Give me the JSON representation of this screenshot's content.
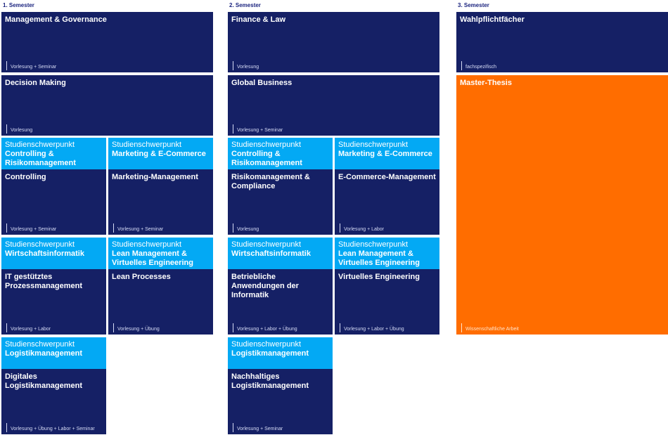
{
  "semesters": [
    {
      "label": "1. Semester"
    },
    {
      "label": "2. Semester"
    },
    {
      "label": "3. Semester"
    }
  ],
  "spec_label": "Studienschwerpunkt",
  "s1": {
    "mg": {
      "title": "Management & Governance",
      "type": "Vorlesung + Seminar"
    },
    "dm": {
      "title": "Decision Making",
      "type": "Vorlesung"
    },
    "controlling": {
      "spec": "Controlling & Risikomanagement",
      "title": "Controlling",
      "type": "Vorlesung + Seminar"
    },
    "marketing": {
      "spec": "Marketing & E-Commerce",
      "title": "Marketing-Management",
      "type": "Vorlesung + Seminar"
    },
    "it": {
      "spec": "Wirtschaftsinformatik",
      "title": "IT gestütztes Prozessmanagement",
      "type": "Vorlesung + Labor"
    },
    "lean": {
      "spec": "Lean Management & Virtuelles Engineering",
      "title": "Lean Processes",
      "type": "Vorlesung + Übung"
    },
    "logistik": {
      "spec": "Logistikmanagement",
      "title": "Digitales Logistikmanagement",
      "type": "Vorlesung + Übung + Labor + Seminar"
    }
  },
  "s2": {
    "fl": {
      "title": "Finance & Law",
      "type": "Vorlesung"
    },
    "gb": {
      "title": "Global Business",
      "type": "Vorlesung + Seminar"
    },
    "risk": {
      "spec": "Controlling & Risikomanagement",
      "title": "Risikomanagement & Compliance",
      "type": "Vorlesung"
    },
    "ecom": {
      "spec": "Marketing & E-Commerce",
      "title": "E-Commerce-Management",
      "type": "Vorlesung + Labor"
    },
    "ba": {
      "spec": "Wirtschaftsinformatik",
      "title": "Betriebliche Anwendungen der Informatik",
      "type": "Vorlesung + Labor + Übung"
    },
    "ve": {
      "spec": "Lean Management & Virtuelles Engineering",
      "title": "Virtuelles Engineering",
      "type": "Vorlesung + Labor + Übung"
    },
    "nl": {
      "spec": "Logistikmanagement",
      "title": "Nachhaltiges Logistikmanagement",
      "type": "Vorlesung + Seminar"
    }
  },
  "s3": {
    "wpf": {
      "title": "Wahlpflichtfächer",
      "type": "fachspezifisch"
    },
    "thesis": {
      "title": "Master-Thesis",
      "type": "Wissenschaftliche Arbeit"
    }
  },
  "colors": {
    "navy": "#152065",
    "spec": "#03a9f4",
    "thesis": "#ff6d00"
  }
}
